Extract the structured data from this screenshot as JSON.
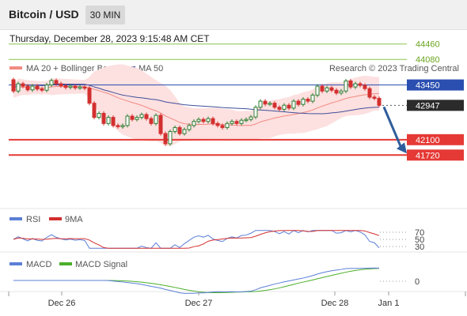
{
  "header": {
    "title": "Bitcoin / USD",
    "timeframe": "30 MIN",
    "datetime": "Thursday, December 28, 2023 9:15:48 AM CET"
  },
  "legend": {
    "ma20_bb": "MA 20 + Bollinger Bands",
    "ma50": "MA 50",
    "credit": "Research © 2023 Trading Central",
    "rsi": "RSI",
    "rsi_ma": "9MA",
    "macd": "MACD",
    "macd_signal": "MACD Signal"
  },
  "colors": {
    "bull": "#2e7d32",
    "bear": "#d32f2f",
    "ma20": "#f28b82",
    "bollinger_fill": "#fde0e0",
    "ma50": "#3f4f9a",
    "pivot_line": "#2b4fb0",
    "resistance": "#8bc34a",
    "support": "#e53935",
    "arrow": "#2f5d9c",
    "price_label": "#2b2b2b"
  },
  "chart_data": {
    "type": "candlestick",
    "x_ticks": [
      "Dec 26",
      "Dec 27",
      "Dec 28",
      "Jan 1"
    ],
    "ylim": [
      41650,
      44650
    ],
    "current_price": 42947,
    "levels": [
      {
        "value": 44460,
        "label": "44460",
        "kind": "resistance"
      },
      {
        "value": 44080,
        "label": "44080",
        "kind": "resistance"
      },
      {
        "value": 43450,
        "label": "43450",
        "kind": "pivot"
      },
      {
        "value": 42100,
        "label": "42100",
        "kind": "support"
      },
      {
        "value": 41720,
        "label": "41720",
        "kind": "support"
      }
    ],
    "candles": [
      [
        43580,
        43300
      ],
      [
        43300,
        43480
      ],
      [
        43480,
        43420
      ],
      [
        43420,
        43330
      ],
      [
        43330,
        43420
      ],
      [
        43420,
        43350
      ],
      [
        43350,
        43320
      ],
      [
        43320,
        43450
      ],
      [
        43450,
        43560
      ],
      [
        43560,
        43480
      ],
      [
        43480,
        43430
      ],
      [
        43430,
        43390
      ],
      [
        43390,
        43420
      ],
      [
        43420,
        43380
      ],
      [
        43380,
        43400
      ],
      [
        43400,
        43370
      ],
      [
        43370,
        43000
      ],
      [
        43000,
        42650
      ],
      [
        42650,
        42750
      ],
      [
        42750,
        42500
      ],
      [
        42500,
        42650
      ],
      [
        42650,
        42450
      ],
      [
        42450,
        42420
      ],
      [
        42420,
        42450
      ],
      [
        42450,
        42680
      ],
      [
        42680,
        42600
      ],
      [
        42600,
        42650
      ],
      [
        42650,
        42720
      ],
      [
        42720,
        42620
      ],
      [
        42620,
        42500
      ],
      [
        42500,
        42700
      ],
      [
        42700,
        42250
      ],
      [
        42250,
        42000
      ],
      [
        42000,
        42300
      ],
      [
        42300,
        42400
      ],
      [
        42400,
        42250
      ],
      [
        42250,
        42350
      ],
      [
        42350,
        42450
      ],
      [
        42450,
        42550
      ],
      [
        42550,
        42600
      ],
      [
        42600,
        42550
      ],
      [
        42550,
        42620
      ],
      [
        42620,
        42500
      ],
      [
        42500,
        42450
      ],
      [
        42450,
        42400
      ],
      [
        42400,
        42500
      ],
      [
        42500,
        42550
      ],
      [
        42550,
        42500
      ],
      [
        42500,
        42580
      ],
      [
        42580,
        42600
      ],
      [
        42600,
        42660
      ],
      [
        42660,
        42900
      ],
      [
        42900,
        43050
      ],
      [
        43050,
        42980
      ],
      [
        42980,
        43000
      ],
      [
        43000,
        42900
      ],
      [
        42900,
        42850
      ],
      [
        42850,
        42950
      ],
      [
        42950,
        42880
      ],
      [
        42880,
        43050
      ],
      [
        43050,
        42970
      ],
      [
        42970,
        43100
      ],
      [
        43100,
        43050
      ],
      [
        43050,
        43200
      ],
      [
        43200,
        43420
      ],
      [
        43420,
        43300
      ],
      [
        43300,
        43380
      ],
      [
        43380,
        43320
      ],
      [
        43320,
        43250
      ],
      [
        43250,
        43300
      ],
      [
        43300,
        43550
      ],
      [
        43550,
        43400
      ],
      [
        43400,
        43480
      ],
      [
        43480,
        43440
      ],
      [
        43440,
        43360
      ],
      [
        43360,
        43150
      ],
      [
        43150,
        43120
      ],
      [
        43120,
        42947
      ]
    ],
    "forecast": {
      "from": 42947,
      "to": 41720
    },
    "rsi_levels": [
      70,
      50,
      30
    ],
    "macd_zero": "0"
  }
}
